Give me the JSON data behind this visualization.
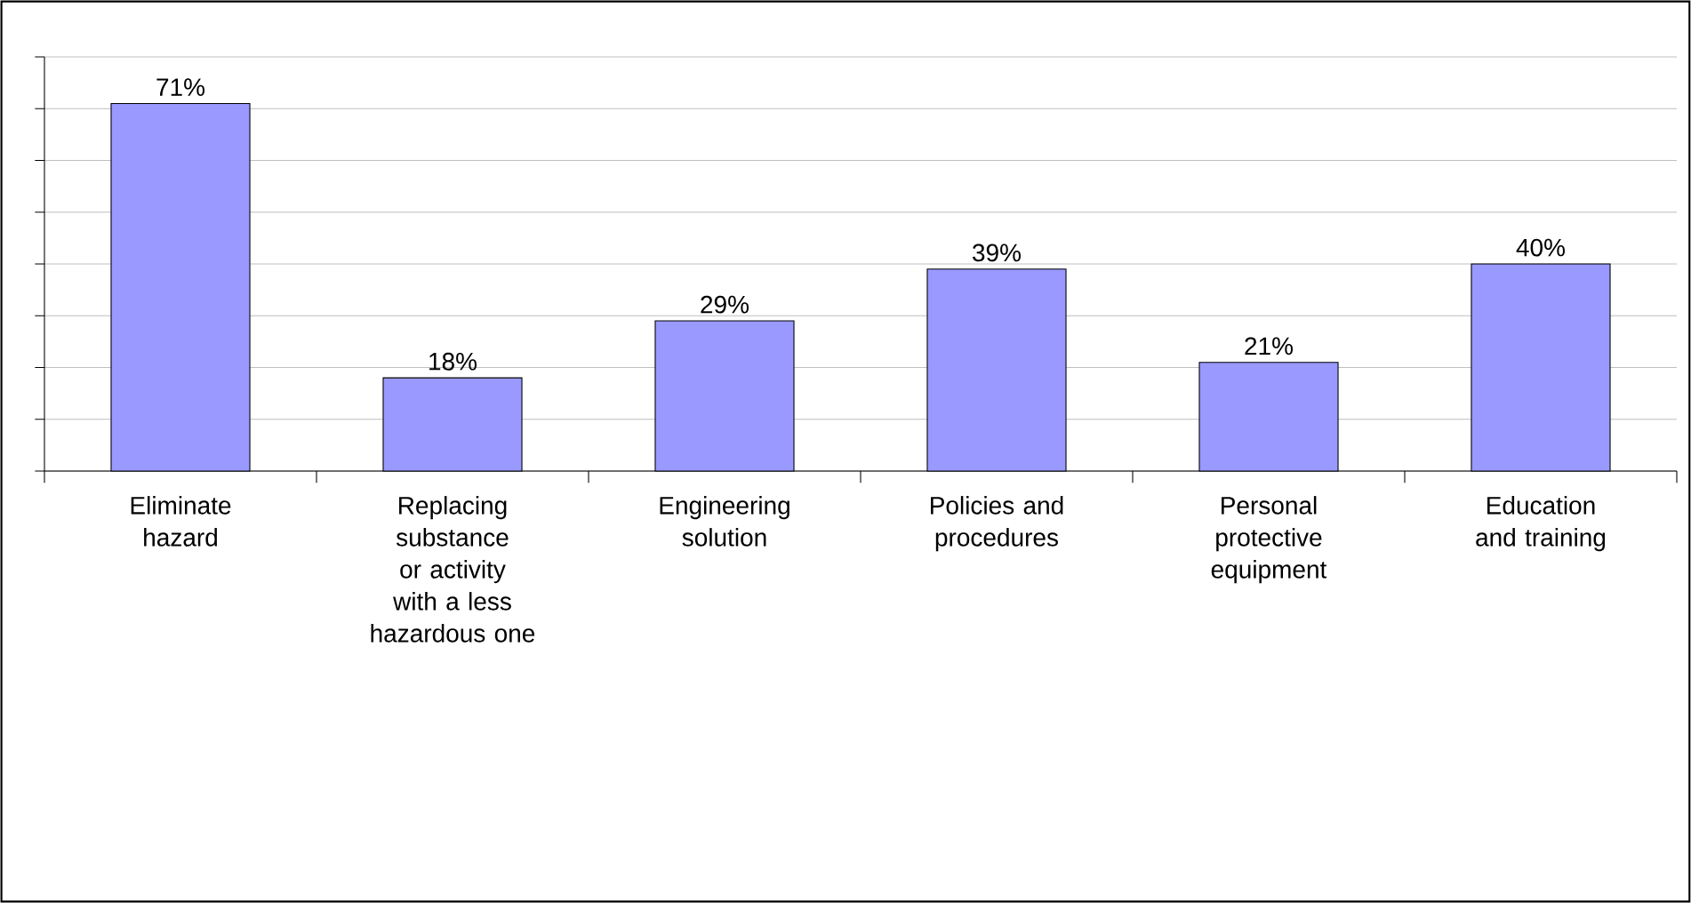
{
  "chart_data": {
    "type": "bar",
    "categories": [
      "Eliminate hazard",
      "Replacing substance or activity with a less hazardous one",
      "Engineering solution",
      "Policies and procedures",
      "Personal protective equipment",
      "Education and training"
    ],
    "values": [
      71,
      18,
      29,
      39,
      21,
      40
    ],
    "value_labels": [
      "71%",
      "18%",
      "29%",
      "39%",
      "21%",
      "40%"
    ],
    "color": "#9999ff",
    "ylim": [
      0,
      80
    ],
    "yticks": [
      {
        "value": 0,
        "label": null
      },
      {
        "value": 10,
        "label": null
      },
      {
        "value": 20,
        "label": null
      },
      {
        "value": 30,
        "label": null
      },
      {
        "value": 40,
        "label": null
      },
      {
        "value": 50,
        "label": null
      },
      {
        "value": 60,
        "label": null
      },
      {
        "value": 70,
        "label": null
      },
      {
        "value": 80,
        "label": null
      }
    ],
    "grid": "y",
    "tick_labels": "x"
  }
}
